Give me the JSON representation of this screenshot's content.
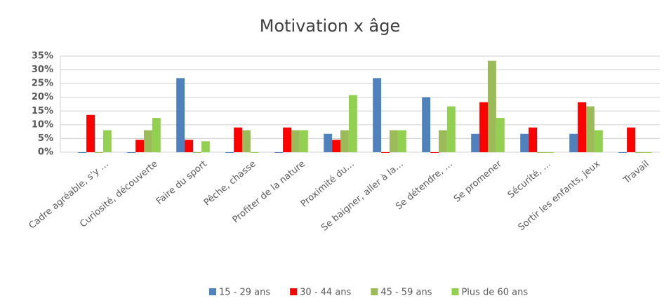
{
  "chart_data": {
    "type": "bar",
    "title": "Motivation x âge",
    "categories": [
      "Cadre agréable, s'y …",
      "Curiosité, découverte",
      "Faire du sport",
      "Pêche, chasse",
      "Profiter de la nature",
      "Proximité du…",
      "Se baigner, aller à la…",
      "Se détendre, …",
      "Se promener",
      "Sécurité, …",
      "Sortir les enfants, jeux",
      "Travail"
    ],
    "series": [
      {
        "name": "15 - 29 ans",
        "color": "#4f81bd",
        "values": [
          0,
          0,
          27,
          0,
          0,
          6.7,
          27,
          20,
          6.7,
          6.7,
          6.7,
          0
        ]
      },
      {
        "name": "30 - 44 ans",
        "color": "#ff0000",
        "values": [
          13.6,
          4.5,
          4.5,
          9,
          9,
          4.5,
          0,
          0,
          18.2,
          9,
          18.2,
          9
        ]
      },
      {
        "name": "45 - 59 ans",
        "color": "#9bbb59",
        "values": [
          0,
          8,
          0,
          8,
          8,
          8,
          8,
          8,
          33.3,
          0,
          16.7,
          0
        ]
      },
      {
        "name": "Plus de 60 ans",
        "color": "#92d050",
        "values": [
          8,
          12.5,
          4,
          0,
          8,
          20.8,
          8,
          16.7,
          12.5,
          0,
          8,
          0
        ]
      }
    ],
    "ylim": [
      0,
      35
    ],
    "yticks": [
      {
        "value": 0,
        "label": "0%"
      },
      {
        "value": 5,
        "label": "5%"
      },
      {
        "value": 10,
        "label": "10%"
      },
      {
        "value": 15,
        "label": "15%"
      },
      {
        "value": 20,
        "label": "20%"
      },
      {
        "value": 25,
        "label": "25%"
      },
      {
        "value": 30,
        "label": "30%"
      },
      {
        "value": 35,
        "label": "35%"
      }
    ],
    "grid": true,
    "legend": "bottom"
  }
}
